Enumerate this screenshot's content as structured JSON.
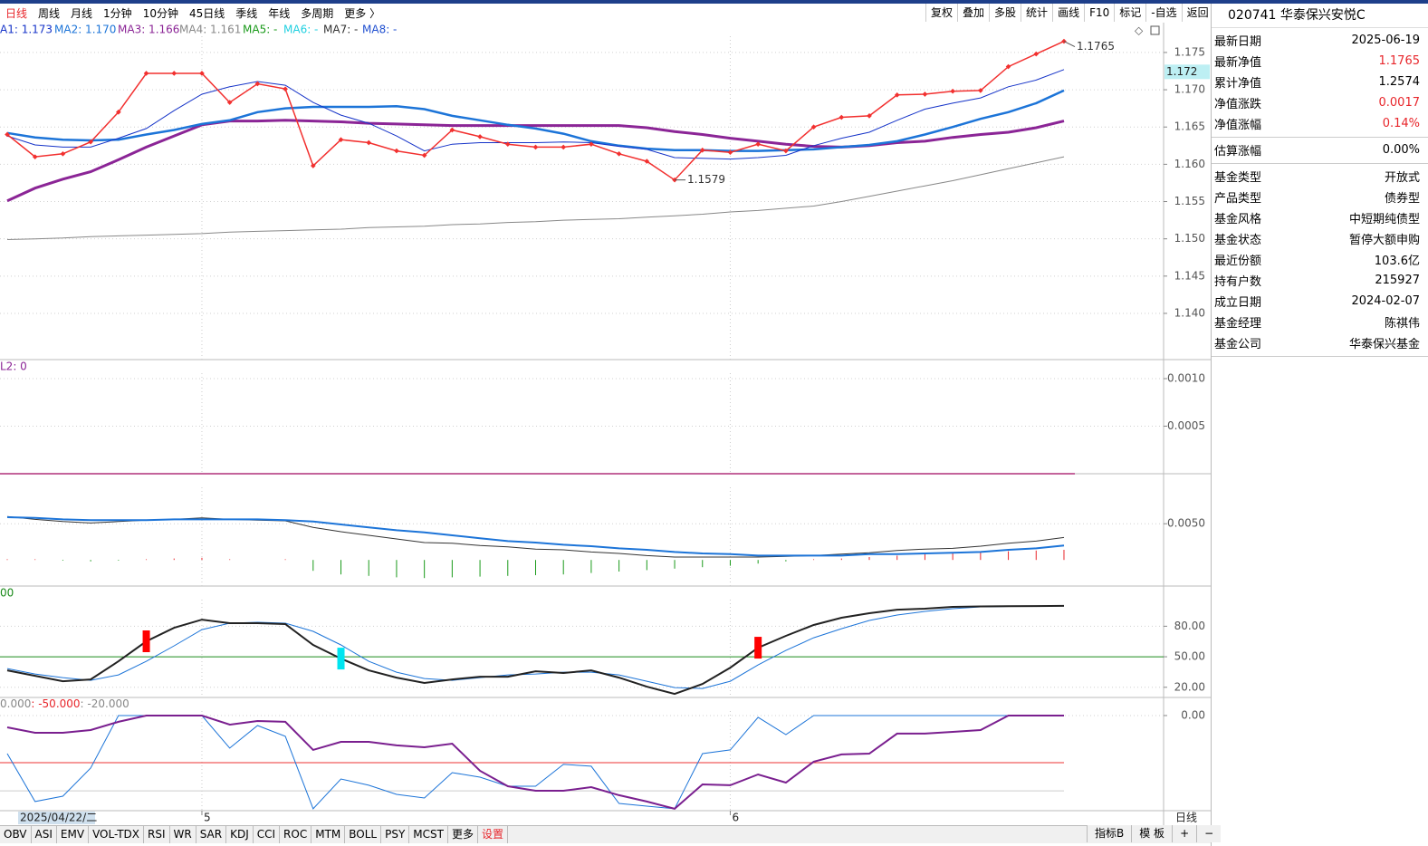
{
  "toolbar": {
    "periods": [
      "日线",
      "周线",
      "月线",
      "1分钟",
      "10分钟",
      "45日线",
      "季线",
      "年线",
      "多周期",
      "更多 〉"
    ],
    "tools": [
      "复权",
      "叠加",
      "多股",
      "统计",
      "画线",
      "F10",
      "标记",
      "-自选",
      "返回"
    ]
  },
  "info": {
    "title": "020741 华泰保兴安悦C",
    "groups": [
      [
        {
          "label": "最新日期",
          "value": "2025-06-19"
        },
        {
          "label": "最新净值",
          "value": "1.1765",
          "color": "#e8262b"
        },
        {
          "label": "累计净值",
          "value": "1.2574"
        },
        {
          "label": "净值涨跌",
          "value": "0.0017",
          "color": "#e8262b"
        },
        {
          "label": "净值涨幅",
          "value": "0.14%",
          "color": "#e8262b"
        }
      ],
      [
        {
          "label": "估算涨幅",
          "value": "0.00%"
        }
      ],
      [
        {
          "label": "基金类型",
          "value": "开放式"
        },
        {
          "label": "产品类型",
          "value": "债券型"
        },
        {
          "label": "基金风格",
          "value": "中短期纯债型"
        },
        {
          "label": "基金状态",
          "value": "暂停大额申购"
        },
        {
          "label": "最近份额",
          "value": "103.6亿"
        },
        {
          "label": "持有户数",
          "value": "215927"
        },
        {
          "label": "成立日期",
          "value": "2024-02-07"
        },
        {
          "label": "基金经理",
          "value": "陈祺伟"
        },
        {
          "label": "基金公司",
          "value": "华泰保兴基金"
        }
      ]
    ]
  },
  "chart": {
    "ma_legend": [
      {
        "text": "A1: 1.173",
        "color": "#1533c8"
      },
      {
        "text": "MA2: 1.170",
        "color": "#1c74d8"
      },
      {
        "text": "MA3: 1.166",
        "color": "#8b2596"
      },
      {
        "text": "MA4: 1.161",
        "color": "#888888"
      },
      {
        "text": "MA5: -",
        "color": "#1a9a1a"
      },
      {
        "text": "MA6: -",
        "color": "#20d0e0"
      },
      {
        "text": "MA7: -",
        "color": "#333333"
      },
      {
        "text": "MA8: -",
        "color": "#2050d0"
      }
    ],
    "main": {
      "ylim": [
        1.1338,
        1.179
      ],
      "yticks": [
        1.175,
        {
          "value": 1.17,
          "label": "1.170"
        },
        1.165,
        {
          "value": 1.16,
          "label": "1.160"
        },
        1.155,
        {
          "value": 1.15,
          "label": "1.150"
        },
        1.145,
        {
          "value": 1.14,
          "label": "1.140"
        }
      ],
      "series": [
        {
          "color": "#888888",
          "width": 1,
          "values": [
            1.1499,
            1.15,
            1.1501,
            1.1503,
            1.1504,
            1.1505,
            1.1506,
            1.1507,
            1.1509,
            1.151,
            1.1511,
            1.1512,
            1.1513,
            1.1515,
            1.1516,
            1.1517,
            1.1519,
            1.152,
            1.1522,
            1.1523,
            1.1525,
            1.1526,
            1.1527,
            1.1529,
            1.1531,
            1.1533,
            1.1536,
            1.1538,
            1.1541,
            1.1544,
            1.155,
            1.1557,
            1.1564,
            1.1571,
            1.1578,
            1.1586,
            1.1594,
            1.1602,
            1.161
          ]
        },
        {
          "color": "#8b2596",
          "width": 3,
          "values": [
            1.1551,
            1.1568,
            1.158,
            1.159,
            1.1606,
            1.1623,
            1.1638,
            1.1653,
            1.1658,
            1.1658,
            1.1659,
            1.1658,
            1.1657,
            1.1655,
            1.1654,
            1.1653,
            1.1652,
            1.1652,
            1.1652,
            1.1652,
            1.1652,
            1.1652,
            1.1652,
            1.1649,
            1.1644,
            1.164,
            1.1635,
            1.1631,
            1.1627,
            1.1624,
            1.1623,
            1.1625,
            1.1629,
            1.1631,
            1.1636,
            1.164,
            1.1643,
            1.1649,
            1.1658
          ]
        },
        {
          "color": "#1c74d8",
          "width": 2.5,
          "values": [
            1.1642,
            1.1636,
            1.1633,
            1.1632,
            1.1633,
            1.164,
            1.1646,
            1.1654,
            1.1659,
            1.167,
            1.1675,
            1.1677,
            1.1677,
            1.1677,
            1.1678,
            1.1674,
            1.1665,
            1.1659,
            1.1653,
            1.1648,
            1.1641,
            1.1631,
            1.1625,
            1.1621,
            1.1619,
            1.1619,
            1.1618,
            1.1618,
            1.1619,
            1.162,
            1.1623,
            1.1626,
            1.1631,
            1.164,
            1.165,
            1.1661,
            1.167,
            1.1682,
            1.1699
          ]
        },
        {
          "color": "#1533c8",
          "width": 1,
          "values": [
            1.1638,
            1.1626,
            1.1623,
            1.1623,
            1.1635,
            1.1648,
            1.1672,
            1.1694,
            1.1704,
            1.1711,
            1.1706,
            1.1683,
            1.1666,
            1.1655,
            1.1638,
            1.1618,
            1.1627,
            1.1629,
            1.1629,
            1.1629,
            1.163,
            1.1629,
            1.1624,
            1.162,
            1.1609,
            1.1608,
            1.1607,
            1.1609,
            1.1612,
            1.1625,
            1.1635,
            1.1643,
            1.1659,
            1.1674,
            1.1682,
            1.1689,
            1.1704,
            1.1713,
            1.1727
          ]
        },
        {
          "color": "#f2302f",
          "width": 1.5,
          "markers": true,
          "values": [
            1.164,
            1.161,
            1.1614,
            1.163,
            1.167,
            1.1722,
            1.1722,
            1.1722,
            1.1683,
            1.1708,
            1.1701,
            1.1598,
            1.1633,
            1.1629,
            1.1618,
            1.1612,
            1.1646,
            1.1637,
            1.1627,
            1.1623,
            1.1623,
            1.1627,
            1.1614,
            1.1604,
            1.1579,
            1.1619,
            1.1616,
            1.1627,
            1.1618,
            1.165,
            1.1663,
            1.1665,
            1.1693,
            1.1694,
            1.1698,
            1.1699,
            1.1731,
            1.1748,
            1.1765
          ]
        }
      ],
      "max_label": {
        "index": 38,
        "label": "1.1765"
      },
      "min_label": {
        "index": 24,
        "label": "1.1579"
      },
      "cursor": {
        "value": 1.1724,
        "label": "1.172"
      }
    },
    "p2": {
      "label": "L2: 0",
      "ylim": [
        0,
        0.0012
      ],
      "yticks": [
        {
          "value": 0.001,
          "label": "0.0010"
        },
        {
          "value": 0.0005,
          "label": "0.0005"
        }
      ],
      "level": 0
    },
    "p3": {
      "ylim": [
        -0.0036,
        0.0119
      ],
      "yticks": [
        {
          "value": 0.005,
          "label": "0.0050"
        }
      ],
      "hist": [
        0.0001,
        0.0001,
        -0.0001,
        -0.0002,
        -0.0001,
        0.0001,
        0.0002,
        0.0003,
        0.0001,
        0,
        0.0001,
        -0.0015,
        -0.002,
        -0.0022,
        -0.0024,
        -0.0025,
        -0.0024,
        -0.0023,
        -0.0022,
        -0.0021,
        -0.002,
        -0.0018,
        -0.0016,
        -0.0014,
        -0.0012,
        -0.001,
        -0.0008,
        -0.0005,
        -0.0002,
        0.0001,
        0.0002,
        0.0004,
        0.0006,
        0.0008,
        0.001,
        0.0011,
        0.0012,
        0.0013,
        0.0014
      ],
      "series": [
        {
          "color": "#333333",
          "width": 1,
          "values": [
            0.006,
            0.0056,
            0.0053,
            0.0051,
            0.0053,
            0.0055,
            0.0056,
            0.0058,
            0.0056,
            0.0055,
            0.0054,
            0.0045,
            0.0039,
            0.0034,
            0.0029,
            0.0024,
            0.0023,
            0.002,
            0.0018,
            0.0015,
            0.0014,
            0.0011,
            0.0009,
            0.0006,
            0.0004,
            0.0004,
            0.0004,
            0.0004,
            0.0005,
            0.0006,
            0.0008,
            0.001,
            0.0013,
            0.0015,
            0.0016,
            0.0019,
            0.0023,
            0.0026,
            0.0031
          ]
        },
        {
          "color": "#1c74d8",
          "width": 2,
          "values": [
            0.0059,
            0.0058,
            0.0056,
            0.0055,
            0.0055,
            0.0055,
            0.0056,
            0.0056,
            0.0056,
            0.0056,
            0.0055,
            0.0053,
            0.0049,
            0.0045,
            0.0041,
            0.0038,
            0.0034,
            0.003,
            0.0026,
            0.0024,
            0.0021,
            0.0019,
            0.0016,
            0.0014,
            0.0011,
            0.0009,
            0.0008,
            0.0006,
            0.0006,
            0.0006,
            0.0006,
            0.0008,
            0.0008,
            0.0009,
            0.001,
            0.0011,
            0.0014,
            0.0016,
            0.002
          ]
        }
      ]
    },
    "p4": {
      "label": "00",
      "ylim": [
        10,
        119.5
      ],
      "yticks": [
        {
          "value": 80,
          "label": "80.00"
        },
        {
          "value": 50,
          "label": "50.00"
        },
        {
          "value": 20,
          "label": "20.00"
        }
      ],
      "mid": 50,
      "series": [
        {
          "color": "#1c74d8",
          "width": 1,
          "values": [
            38.4,
            33.1,
            29.5,
            26.8,
            32.2,
            45.5,
            60.7,
            76.7,
            83,
            83.9,
            83,
            75,
            61.6,
            45.5,
            34.8,
            28.6,
            26.8,
            29.5,
            32.2,
            33.1,
            34.8,
            34.8,
            32.2,
            25.9,
            19.7,
            18.8,
            25.9,
            42,
            56.2,
            68.7,
            77.6,
            85.7,
            91,
            94.6,
            97.2,
            99,
            99.5,
            99.8,
            100
          ]
        },
        {
          "color": "#222222",
          "width": 2,
          "values": [
            36.6,
            31.3,
            25.9,
            27.7,
            45.5,
            65.2,
            78.5,
            86.5,
            83,
            83,
            82.1,
            61.6,
            48.2,
            36.6,
            29.5,
            24.2,
            27.7,
            30.4,
            30.4,
            35.7,
            34,
            36.6,
            29.5,
            20.6,
            13.5,
            23.3,
            39.3,
            58.9,
            70.5,
            81.2,
            88.3,
            92.8,
            96.3,
            97.2,
            99,
            99.5,
            99.7,
            99.8,
            100
          ]
        }
      ],
      "signals": [
        {
          "index": 5,
          "color": "#ff0000"
        },
        {
          "index": 12,
          "color": "#00e5f0"
        },
        {
          "index": 27,
          "color": "#ff0000"
        }
      ]
    },
    "p5": {
      "label": [
        "0.000",
        ": -50.000",
        ": -20.000"
      ],
      "ylim": [
        -101,
        19.2
      ],
      "yticks": [
        {
          "value": 0,
          "label": "0.00"
        }
      ],
      "hlines": [
        {
          "value": -50,
          "color": "#e33"
        },
        {
          "value": -80,
          "color": "#ccc"
        }
      ],
      "series": [
        {
          "color": "#1c74d8",
          "width": 1,
          "values": [
            -40.4,
            -91.3,
            -85.6,
            -55.8,
            0,
            0,
            0,
            0,
            -34.6,
            -10.6,
            -22.1,
            -99,
            -67.3,
            -74,
            -83.7,
            -87.5,
            -60.6,
            -65.4,
            -75,
            -75,
            -51.9,
            -53.8,
            -93.3,
            -96.2,
            -99,
            -40.4,
            -36.5,
            -1.9,
            -20.2,
            0,
            0,
            0,
            0,
            0,
            0,
            0,
            0,
            0,
            0
          ]
        },
        {
          "color": "#7a1f8f",
          "width": 2,
          "values": [
            -12.5,
            -18.3,
            -18.3,
            -15.4,
            -6.7,
            0,
            0,
            0,
            -9.6,
            -5.8,
            -6.7,
            -36.5,
            -27.9,
            -27.9,
            -31.7,
            -33.7,
            -29.8,
            -58.7,
            -75,
            -79.8,
            -79.8,
            -76,
            -84.6,
            -91.3,
            -99,
            -73.1,
            -74,
            -62.5,
            -71.2,
            -49,
            -41.3,
            -40.4,
            -19.2,
            -19.2,
            -17.3,
            -15.4,
            0,
            0,
            0
          ]
        }
      ]
    },
    "cursor_date": "2025/04/22/二",
    "months": [
      {
        "index": 7,
        "label": "5"
      },
      {
        "index": 26,
        "label": "6"
      }
    ],
    "period_label": "日线"
  },
  "tabs": [
    "OBV",
    "ASI",
    "EMV",
    "VOL-TDX",
    "RSI",
    "WR",
    "SAR",
    "KDJ",
    "CCI",
    "ROC",
    "MTM",
    "BOLL",
    "PSY",
    "MCST",
    "更多",
    "设置"
  ],
  "tabs_right": [
    "指标B",
    "模 板",
    "+",
    "−"
  ]
}
